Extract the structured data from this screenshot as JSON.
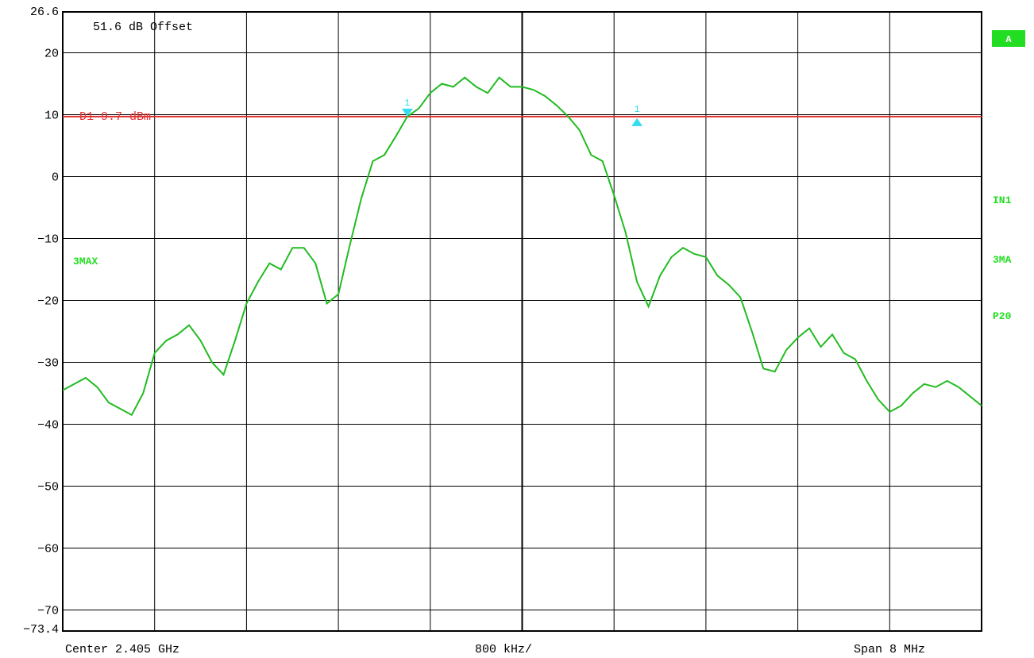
{
  "chart_data": {
    "type": "line",
    "x_unit": "GHz",
    "xlim": [
      2.401,
      2.409
    ],
    "ylim": [
      -73.4,
      26.6
    ],
    "y_ticks": [
      "26.6",
      "20",
      "10",
      "0",
      "−10",
      "−20",
      "−30",
      "−40",
      "−50",
      "−60",
      "−70",
      "−73.4"
    ],
    "y_tick_values": [
      26.6,
      20,
      10,
      0,
      -10,
      -20,
      -30,
      -40,
      -50,
      -60,
      -70,
      -73.4
    ],
    "x_divisions": 10,
    "grid": true,
    "offset_label": "51.6 dB Offset",
    "footer": {
      "center": "Center 2.405 GHz",
      "per_div": "800 kHz/",
      "span": "Span 8 MHz"
    },
    "display_line": {
      "label": "D1 9.7 dBm",
      "value": 9.7,
      "color": "#e03030"
    },
    "trace_label": "3MAX",
    "trace_color": "#22bb22",
    "series": [
      {
        "x": [
          2.401,
          2.4012,
          2.4013,
          2.4014,
          2.4016,
          2.4017,
          2.4018,
          2.4019,
          2.402,
          2.4021,
          2.4022,
          2.4023,
          2.4024,
          2.4025,
          2.4026,
          2.4027,
          2.4028,
          2.4029,
          2.403,
          2.4031,
          2.4032,
          2.4033,
          2.4034,
          2.4035,
          2.4036,
          2.4037,
          2.4038,
          2.4039,
          2.404,
          2.4041,
          2.4042,
          2.4043,
          2.4044,
          2.4045,
          2.4046,
          2.4047,
          2.4048,
          2.4049,
          2.405,
          2.4051,
          2.4052,
          2.4053,
          2.4054,
          2.4055,
          2.4056,
          2.4057,
          2.4058,
          2.4059,
          2.406,
          2.4061,
          2.4062,
          2.4063,
          2.4064,
          2.4065,
          2.4066,
          2.4067,
          2.4068,
          2.4069,
          2.407,
          2.4071,
          2.4072,
          2.4073,
          2.4074,
          2.4075,
          2.4076,
          2.4077,
          2.4078,
          2.4079,
          2.408,
          2.4081,
          2.4082,
          2.4083,
          2.4084,
          2.4085,
          2.4086,
          2.4087,
          2.4088,
          2.409
        ],
        "y": [
          -34.5,
          -32.5,
          -34.0,
          -36.5,
          -38.5,
          -35.0,
          -28.5,
          -26.5,
          -25.5,
          -24.0,
          -26.5,
          -30.0,
          -32.0,
          -26.5,
          -20.5,
          -17.0,
          -14.0,
          -15.0,
          -11.5,
          -11.5,
          -14.0,
          -20.5,
          -19.0,
          -11.0,
          -3.5,
          2.5,
          3.5,
          6.5,
          9.7,
          11.0,
          13.5,
          15.0,
          14.5,
          16.0,
          14.5,
          13.5,
          16.0,
          14.5,
          14.5,
          14.0,
          13.0,
          11.5,
          9.7,
          7.5,
          3.5,
          2.5,
          -3.0,
          -9.0,
          -17.0,
          -21.0,
          -16.0,
          -13.0,
          -11.5,
          -12.5,
          -13.0,
          -16.0,
          -17.5,
          -19.5,
          -25.0,
          -31.0,
          -31.5,
          -28.0,
          -26.0,
          -24.5,
          -27.5,
          -25.5,
          -28.5,
          -29.5,
          -33.0,
          -36.0,
          -38.0,
          -37.0,
          -35.0,
          -33.5,
          -34.0,
          -33.0,
          -34.0,
          -37.0
        ]
      }
    ],
    "markers": [
      {
        "label": "1",
        "x": 2.404,
        "y": 9.7,
        "direction": "down"
      },
      {
        "label": "1",
        "x": 2.406,
        "y": 9.7,
        "direction": "up"
      }
    ]
  },
  "right_panel": {
    "a_label": "A",
    "in1": "IN1",
    "trace_mode": "3MA",
    "p20": "P20"
  }
}
